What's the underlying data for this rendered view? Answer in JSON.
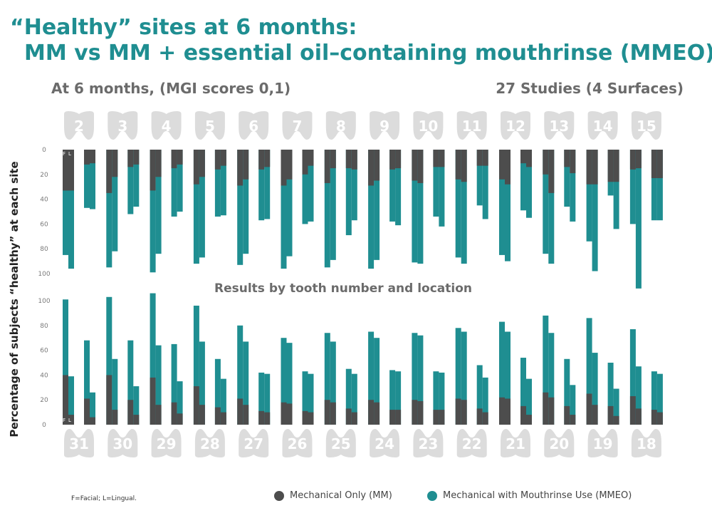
{
  "title_line1": "“Healthy” sites at 6 months:",
  "title_line2": "MM vs MM + essential oil–containing mouthrinse (MMEO)",
  "subtitle_left": "At 6 months, (MGI scores 0,1)",
  "subtitle_right": "27 Studies (4 Surfaces)",
  "middle_label": "Results by tooth number and location",
  "footnote": "F=Facial; L=Lingual.",
  "colors": {
    "mm": "#4d4d4d",
    "mmeo": "#1f8e91",
    "tooth": "#dcdcdc",
    "tick": "#7a7a7a"
  },
  "chart_data": {
    "type": "bar",
    "stacked": true,
    "ylabel": "Percentage of subjects “healthy” at each site",
    "ylim": [
      0,
      100
    ],
    "legend": [
      {
        "key": "mm",
        "label": "Mechanical Only (MM)"
      },
      {
        "key": "mmeo",
        "label": "Mechanical with Mouthrinse Use (MMEO)"
      }
    ],
    "upper": {
      "orientation": "downward",
      "yticks": [
        "0",
        "20",
        "40",
        "60",
        "80",
        "100"
      ],
      "surface_labels": [
        "F",
        "L"
      ],
      "teeth": [
        "2",
        "3",
        "4",
        "5",
        "6",
        "7",
        "8",
        "9",
        "10",
        "11",
        "12",
        "13",
        "14",
        "15"
      ],
      "mm": [
        [
          33,
          33
        ],
        [
          12,
          11
        ],
        [
          35,
          22
        ],
        [
          14,
          12
        ],
        [
          33,
          22
        ],
        [
          15,
          12
        ],
        [
          28,
          22
        ],
        [
          16,
          13
        ],
        [
          29,
          24
        ],
        [
          16,
          14
        ],
        [
          29,
          24
        ],
        [
          20,
          13
        ],
        [
          27,
          15
        ],
        [
          15,
          16
        ],
        [
          29,
          25
        ],
        [
          16,
          15
        ],
        [
          25,
          27
        ],
        [
          14,
          14
        ],
        [
          24,
          26
        ],
        [
          13,
          13
        ],
        [
          24,
          28
        ],
        [
          11,
          14
        ],
        [
          20,
          35
        ],
        [
          14,
          19
        ],
        [
          28,
          28
        ],
        [
          26,
          26
        ],
        [
          16,
          15
        ],
        [
          23,
          23
        ]
      ],
      "mmeo": [
        [
          85,
          96
        ],
        [
          47,
          48
        ],
        [
          95,
          82
        ],
        [
          52,
          46
        ],
        [
          99,
          84
        ],
        [
          54,
          50
        ],
        [
          92,
          87
        ],
        [
          54,
          53
        ],
        [
          93,
          84
        ],
        [
          57,
          56
        ],
        [
          96,
          86
        ],
        [
          60,
          58
        ],
        [
          95,
          89
        ],
        [
          69,
          57
        ],
        [
          96,
          89
        ],
        [
          58,
          61
        ],
        [
          91,
          92
        ],
        [
          54,
          62
        ],
        [
          87,
          92
        ],
        [
          45,
          56
        ],
        [
          85,
          90
        ],
        [
          49,
          55
        ],
        [
          84,
          92
        ],
        [
          46,
          58
        ],
        [
          74,
          98
        ],
        [
          37,
          64
        ],
        [
          60,
          112
        ],
        [
          57,
          57
        ]
      ]
    },
    "lower": {
      "orientation": "upward",
      "yticks": [
        "0",
        "20",
        "40",
        "60",
        "80",
        "100"
      ],
      "surface_labels": [
        "F",
        "L"
      ],
      "teeth": [
        "31",
        "30",
        "29",
        "28",
        "27",
        "26",
        "25",
        "24",
        "23",
        "22",
        "21",
        "20",
        "19",
        "18"
      ],
      "mm": [
        [
          40,
          8
        ],
        [
          21,
          6
        ],
        [
          40,
          12
        ],
        [
          20,
          8
        ],
        [
          38,
          16
        ],
        [
          18,
          9
        ],
        [
          31,
          16
        ],
        [
          14,
          10
        ],
        [
          21,
          16
        ],
        [
          11,
          10
        ],
        [
          18,
          17
        ],
        [
          11,
          10
        ],
        [
          20,
          18
        ],
        [
          13,
          10
        ],
        [
          20,
          18
        ],
        [
          12,
          12
        ],
        [
          20,
          19
        ],
        [
          12,
          12
        ],
        [
          21,
          20
        ],
        [
          13,
          10
        ],
        [
          22,
          21
        ],
        [
          15,
          8
        ],
        [
          26,
          22
        ],
        [
          15,
          8
        ],
        [
          25,
          16
        ],
        [
          15,
          7
        ],
        [
          23,
          13
        ],
        [
          12,
          10
        ]
      ],
      "mmeo": [
        [
          101,
          39
        ],
        [
          68,
          26
        ],
        [
          103,
          53
        ],
        [
          68,
          31
        ],
        [
          106,
          64
        ],
        [
          65,
          35
        ],
        [
          96,
          67
        ],
        [
          53,
          37
        ],
        [
          80,
          67
        ],
        [
          42,
          41
        ],
        [
          70,
          66
        ],
        [
          43,
          41
        ],
        [
          74,
          67
        ],
        [
          45,
          41
        ],
        [
          75,
          70
        ],
        [
          44,
          43
        ],
        [
          74,
          72
        ],
        [
          43,
          42
        ],
        [
          78,
          75
        ],
        [
          48,
          38
        ],
        [
          83,
          75
        ],
        [
          54,
          37
        ],
        [
          88,
          74
        ],
        [
          53,
          32
        ],
        [
          86,
          58
        ],
        [
          50,
          29
        ],
        [
          77,
          47
        ],
        [
          43,
          41
        ]
      ]
    }
  }
}
